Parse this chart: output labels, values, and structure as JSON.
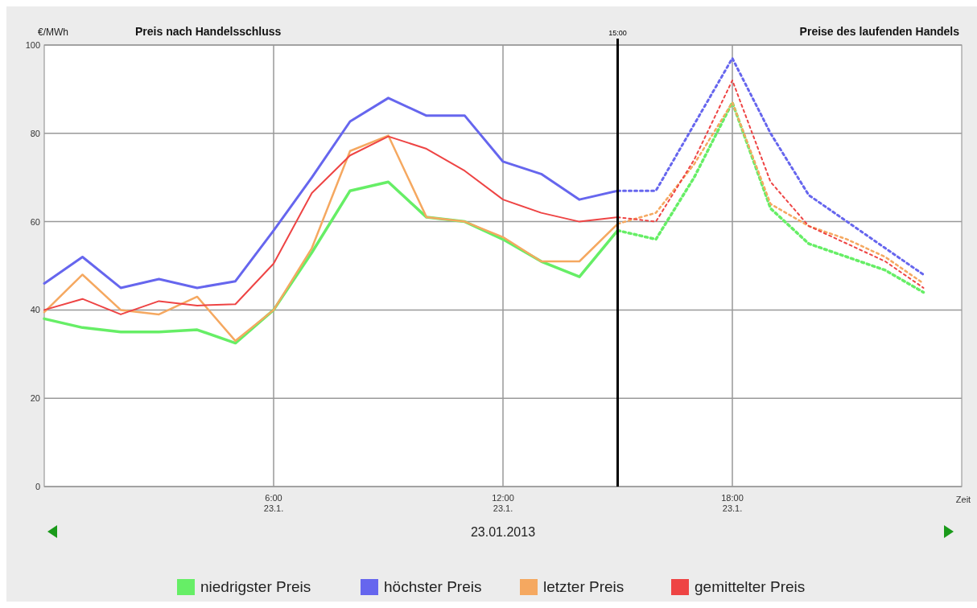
{
  "chart_data": {
    "type": "line",
    "title": "Preis nach Handelsschluss",
    "subtitle": "Preise des laufenden Handels",
    "ylabel": "€/MWh",
    "xlabel": "Zeit",
    "annotations": [
      "23.01.2013"
    ],
    "xlim": [
      "2013-01-23T00:00",
      "2013-01-24T00:00"
    ],
    "xticks": [
      {
        "value": "2013-01-23T06:00",
        "label": "6:00\n23.1."
      },
      {
        "value": "2013-01-23T12:00",
        "label": "12:00\n23.1."
      },
      {
        "value": "2013-01-23T18:00",
        "label": "18:00\n23.1."
      }
    ],
    "ylim": [
      0,
      100
    ],
    "yticks": [
      0,
      20,
      40,
      60,
      80,
      100
    ],
    "grid": true,
    "legend": "bottom",
    "ref_lines": [
      {
        "axis": "x",
        "value": "2013-01-23T15:00",
        "label": "15:00",
        "color": "#000000"
      }
    ],
    "series": [
      {
        "name": "niedrigster Preis",
        "color": "#66ee66",
        "line_style": "solid",
        "x": [
          "2013-01-23T00:00",
          "2013-01-23T01:00",
          "2013-01-23T02:00",
          "2013-01-23T03:00",
          "2013-01-23T04:00",
          "2013-01-23T05:00",
          "2013-01-23T06:00",
          "2013-01-23T07:00",
          "2013-01-23T08:00",
          "2013-01-23T09:00",
          "2013-01-23T10:00",
          "2013-01-23T11:00",
          "2013-01-23T12:00",
          "2013-01-23T13:00",
          "2013-01-23T14:00",
          "2013-01-23T15:00"
        ],
        "values": [
          38,
          36,
          35,
          35,
          35.5,
          32.5,
          40,
          53,
          67,
          69,
          61,
          60,
          56,
          51,
          47.5,
          58
        ]
      },
      {
        "name": "höchster Preis",
        "color": "#6666ee",
        "line_style": "solid",
        "x": [
          "2013-01-23T00:00",
          "2013-01-23T01:00",
          "2013-01-23T02:00",
          "2013-01-23T03:00",
          "2013-01-23T04:00",
          "2013-01-23T05:00",
          "2013-01-23T06:00",
          "2013-01-23T07:00",
          "2013-01-23T08:00",
          "2013-01-23T09:00",
          "2013-01-23T10:00",
          "2013-01-23T11:00",
          "2013-01-23T12:00",
          "2013-01-23T13:00",
          "2013-01-23T14:00",
          "2013-01-23T15:00"
        ],
        "values": [
          46,
          52,
          45,
          47,
          45,
          46.5,
          58,
          70,
          82.7,
          88,
          84,
          84,
          73.6,
          70.8,
          65,
          67
        ]
      },
      {
        "name": "letzter Preis",
        "color": "#f5a860",
        "line_style": "solid",
        "x": [
          "2013-01-23T00:00",
          "2013-01-23T01:00",
          "2013-01-23T02:00",
          "2013-01-23T03:00",
          "2013-01-23T04:00",
          "2013-01-23T05:00",
          "2013-01-23T06:00",
          "2013-01-23T07:00",
          "2013-01-23T08:00",
          "2013-01-23T09:00",
          "2013-01-23T10:00",
          "2013-01-23T11:00",
          "2013-01-23T12:00",
          "2013-01-23T13:00",
          "2013-01-23T14:00",
          "2013-01-23T15:00"
        ],
        "values": [
          39.5,
          48,
          40,
          39,
          43,
          33,
          40,
          54,
          76,
          79.5,
          61,
          60,
          56.5,
          51,
          51,
          59.5
        ]
      },
      {
        "name": "gemittelter Preis",
        "color": "#ee4444",
        "line_style": "solid",
        "x": [
          "2013-01-23T00:00",
          "2013-01-23T01:00",
          "2013-01-23T02:00",
          "2013-01-23T03:00",
          "2013-01-23T04:00",
          "2013-01-23T05:00",
          "2013-01-23T06:00",
          "2013-01-23T07:00",
          "2013-01-23T08:00",
          "2013-01-23T09:00",
          "2013-01-23T10:00",
          "2013-01-23T11:00",
          "2013-01-23T12:00",
          "2013-01-23T13:00",
          "2013-01-23T14:00",
          "2013-01-23T15:00"
        ],
        "values": [
          40,
          42.5,
          39,
          42,
          41,
          41.3,
          50.5,
          66.5,
          75,
          79.3,
          76.5,
          71.5,
          65,
          62,
          60,
          61
        ]
      },
      {
        "color": "#66ee66",
        "line_style": "dotted",
        "x": [
          "2013-01-23T15:00",
          "2013-01-23T16:00",
          "2013-01-23T17:00",
          "2013-01-23T18:00",
          "2013-01-23T19:00",
          "2013-01-23T20:00",
          "2013-01-23T21:00",
          "2013-01-23T22:00",
          "2013-01-23T23:00"
        ],
        "values": [
          58,
          56,
          70,
          87,
          63,
          55,
          52,
          49,
          44
        ]
      },
      {
        "color": "#6666ee",
        "line_style": "dotted",
        "x": [
          "2013-01-23T15:00",
          "2013-01-23T16:00",
          "2013-01-23T17:00",
          "2013-01-23T18:00",
          "2013-01-23T19:00",
          "2013-01-23T20:00",
          "2013-01-23T21:00",
          "2013-01-23T22:00",
          "2013-01-23T23:00"
        ],
        "values": [
          67,
          67,
          82,
          97,
          80,
          66,
          60,
          54,
          48
        ]
      },
      {
        "color": "#f5a860",
        "line_style": "dotted",
        "x": [
          "2013-01-23T15:00",
          "2013-01-23T16:00",
          "2013-01-23T17:00",
          "2013-01-23T18:00",
          "2013-01-23T19:00",
          "2013-01-23T20:00",
          "2013-01-23T21:00",
          "2013-01-23T22:00",
          "2013-01-23T23:00"
        ],
        "values": [
          59.5,
          62,
          73,
          87,
          64,
          59,
          56,
          52,
          46
        ]
      },
      {
        "color": "#ee4444",
        "line_style": "dotted",
        "x": [
          "2013-01-23T15:00",
          "2013-01-23T16:00",
          "2013-01-23T17:00",
          "2013-01-23T18:00",
          "2013-01-23T19:00",
          "2013-01-23T20:00",
          "2013-01-23T21:00",
          "2013-01-23T22:00",
          "2013-01-23T23:00"
        ],
        "values": [
          61,
          60,
          74,
          92,
          69,
          59,
          55,
          51,
          45
        ]
      }
    ]
  }
}
